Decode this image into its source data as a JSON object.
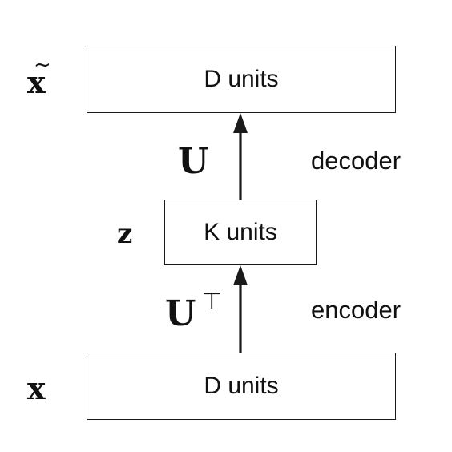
{
  "layers": {
    "top": {
      "variable": "x",
      "variable_accent": "~",
      "units_label": "D units"
    },
    "middle": {
      "variable": "z",
      "units_label": "K units"
    },
    "bottom": {
      "variable": "x",
      "units_label": "D units"
    }
  },
  "connections": {
    "decoder": {
      "weight": "U",
      "stage_label": "decoder"
    },
    "encoder": {
      "weight": "U",
      "weight_superscript": "⊤",
      "stage_label": "encoder"
    }
  },
  "colors": {
    "stroke": "#1a1a1a",
    "text": "#111111",
    "background": "#ffffff"
  }
}
